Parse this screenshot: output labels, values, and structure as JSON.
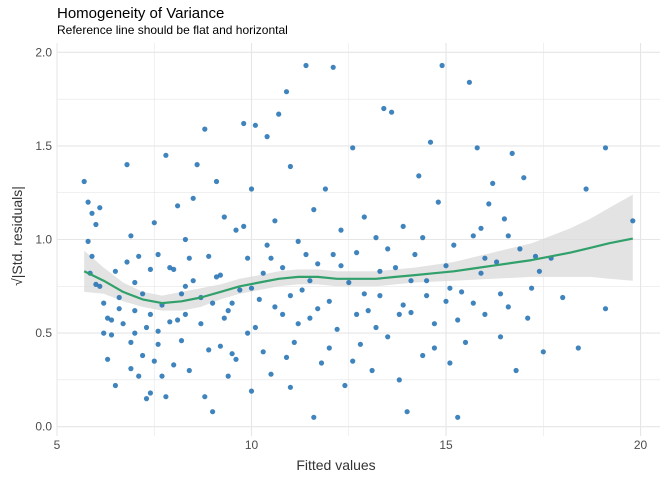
{
  "chart_data": {
    "type": "scatter",
    "title": "Homogeneity of Variance",
    "subtitle": "Reference line should be flat and horizontal",
    "xlabel": "Fitted values",
    "ylabel_radical": "√",
    "ylabel_text": "|Std. residuals|",
    "xlim": [
      5,
      20.5
    ],
    "ylim": [
      -0.05,
      2.05
    ],
    "x_ticks": [
      "5",
      "10",
      "15",
      "20"
    ],
    "y_ticks": [
      "0.0",
      "0.5",
      "1.0",
      "1.5",
      "2.0"
    ],
    "grid": true,
    "colors": {
      "points": "#1f6fb2",
      "smooth": "#31a06b",
      "band": "#d9d9d9",
      "grid": "#e6e6e6"
    },
    "smooth": {
      "x": [
        5.7,
        6.2,
        6.7,
        7.2,
        7.7,
        8.2,
        8.7,
        9.2,
        9.7,
        10.2,
        10.7,
        11.2,
        11.7,
        12.2,
        12.7,
        13.2,
        13.7,
        14.2,
        14.7,
        15.2,
        15.7,
        16.2,
        16.7,
        17.2,
        17.7,
        18.2,
        18.7,
        19.2,
        19.8
      ],
      "y": [
        0.83,
        0.78,
        0.72,
        0.68,
        0.66,
        0.67,
        0.69,
        0.72,
        0.75,
        0.77,
        0.79,
        0.8,
        0.8,
        0.79,
        0.79,
        0.79,
        0.8,
        0.81,
        0.82,
        0.83,
        0.845,
        0.86,
        0.875,
        0.89,
        0.91,
        0.93,
        0.955,
        0.98,
        1.005
      ],
      "lower": [
        0.72,
        0.71,
        0.67,
        0.64,
        0.62,
        0.62,
        0.64,
        0.68,
        0.71,
        0.73,
        0.75,
        0.76,
        0.76,
        0.75,
        0.75,
        0.75,
        0.76,
        0.77,
        0.775,
        0.78,
        0.785,
        0.79,
        0.795,
        0.8,
        0.8,
        0.8,
        0.8,
        0.79,
        0.78
      ],
      "upper": [
        0.94,
        0.85,
        0.77,
        0.72,
        0.7,
        0.72,
        0.74,
        0.76,
        0.79,
        0.81,
        0.83,
        0.84,
        0.84,
        0.83,
        0.83,
        0.83,
        0.84,
        0.85,
        0.865,
        0.88,
        0.905,
        0.93,
        0.955,
        0.98,
        1.02,
        1.06,
        1.11,
        1.17,
        1.24
      ]
    },
    "points": [
      [
        5.7,
        1.31
      ],
      [
        5.8,
        1.2
      ],
      [
        5.9,
        1.14
      ],
      [
        5.8,
        0.99
      ],
      [
        5.9,
        0.91
      ],
      [
        6.0,
        0.76
      ],
      [
        5.85,
        0.82
      ],
      [
        6.0,
        1.08
      ],
      [
        6.1,
        0.75
      ],
      [
        6.2,
        0.66
      ],
      [
        6.2,
        0.5
      ],
      [
        6.3,
        0.58
      ],
      [
        6.3,
        0.36
      ],
      [
        6.4,
        0.57
      ],
      [
        6.4,
        0.49
      ],
      [
        6.5,
        0.22
      ],
      [
        6.6,
        0.69
      ],
      [
        6.7,
        0.55
      ],
      [
        6.8,
        0.88
      ],
      [
        6.8,
        1.4
      ],
      [
        6.9,
        0.31
      ],
      [
        6.9,
        0.45
      ],
      [
        7.0,
        0.62
      ],
      [
        7.0,
        0.77
      ],
      [
        7.1,
        0.27
      ],
      [
        7.1,
        0.91
      ],
      [
        7.2,
        0.38
      ],
      [
        7.3,
        0.15
      ],
      [
        7.3,
        0.53
      ],
      [
        7.4,
        0.18
      ],
      [
        7.4,
        0.84
      ],
      [
        7.5,
        1.09
      ],
      [
        7.5,
        0.35
      ],
      [
        7.6,
        0.51
      ],
      [
        7.6,
        0.92
      ],
      [
        7.7,
        0.27
      ],
      [
        7.7,
        0.65
      ],
      [
        7.8,
        1.45
      ],
      [
        7.8,
        0.16
      ],
      [
        7.9,
        0.56
      ],
      [
        8.0,
        0.33
      ],
      [
        8.0,
        0.84
      ],
      [
        8.1,
        1.18
      ],
      [
        8.2,
        0.71
      ],
      [
        8.2,
        0.46
      ],
      [
        8.3,
        0.6
      ],
      [
        8.3,
        1.0
      ],
      [
        8.4,
        0.3
      ],
      [
        8.5,
        0.78
      ],
      [
        8.5,
        1.22
      ],
      [
        8.6,
        1.4
      ],
      [
        8.7,
        0.55
      ],
      [
        8.8,
        0.16
      ],
      [
        8.8,
        1.59
      ],
      [
        8.9,
        0.91
      ],
      [
        9.0,
        0.08
      ],
      [
        9.0,
        0.66
      ],
      [
        9.1,
        1.31
      ],
      [
        9.2,
        0.43
      ],
      [
        9.2,
        0.81
      ],
      [
        9.3,
        1.12
      ],
      [
        9.4,
        0.27
      ],
      [
        9.4,
        0.62
      ],
      [
        9.5,
        0.39
      ],
      [
        9.6,
        1.05
      ],
      [
        9.7,
        0.73
      ],
      [
        9.8,
        1.62
      ],
      [
        9.9,
        0.5
      ],
      [
        9.9,
        0.9
      ],
      [
        10.0,
        0.19
      ],
      [
        10.0,
        1.27
      ],
      [
        10.1,
        1.61
      ],
      [
        10.2,
        0.68
      ],
      [
        10.3,
        0.4
      ],
      [
        10.4,
        0.97
      ],
      [
        10.4,
        1.55
      ],
      [
        10.5,
        0.28
      ],
      [
        10.6,
        1.1
      ],
      [
        10.7,
        1.67
      ],
      [
        10.8,
        0.6
      ],
      [
        10.8,
        0.85
      ],
      [
        10.9,
        1.79
      ],
      [
        11.0,
        0.21
      ],
      [
        11.0,
        1.39
      ],
      [
        11.1,
        0.45
      ],
      [
        11.2,
        0.99
      ],
      [
        11.3,
        0.73
      ],
      [
        11.4,
        1.93
      ],
      [
        11.5,
        0.58
      ],
      [
        11.6,
        0.05
      ],
      [
        11.6,
        1.16
      ],
      [
        11.7,
        0.87
      ],
      [
        11.8,
        0.34
      ],
      [
        11.9,
        1.27
      ],
      [
        12.0,
        0.67
      ],
      [
        12.1,
        1.92
      ],
      [
        12.2,
        0.52
      ],
      [
        12.3,
        1.05
      ],
      [
        12.4,
        0.22
      ],
      [
        12.5,
        0.77
      ],
      [
        12.6,
        1.49
      ],
      [
        12.7,
        0.93
      ],
      [
        12.8,
        0.44
      ],
      [
        12.9,
        1.12
      ],
      [
        13.0,
        0.62
      ],
      [
        13.1,
        0.3
      ],
      [
        13.2,
        1.01
      ],
      [
        13.3,
        0.7
      ],
      [
        13.4,
        1.7
      ],
      [
        13.5,
        0.48
      ],
      [
        13.6,
        1.68
      ],
      [
        13.7,
        0.85
      ],
      [
        13.8,
        0.25
      ],
      [
        13.9,
        1.07
      ],
      [
        14.0,
        0.08
      ],
      [
        14.1,
        0.61
      ],
      [
        14.2,
        0.92
      ],
      [
        14.3,
        1.34
      ],
      [
        14.4,
        0.38
      ],
      [
        14.5,
        0.78
      ],
      [
        14.6,
        1.52
      ],
      [
        14.7,
        0.55
      ],
      [
        14.8,
        1.2
      ],
      [
        14.9,
        1.93
      ],
      [
        15.0,
        0.67
      ],
      [
        15.1,
        0.34
      ],
      [
        15.2,
        0.97
      ],
      [
        15.3,
        0.05
      ],
      [
        15.4,
        0.72
      ],
      [
        15.5,
        0.45
      ],
      [
        15.6,
        1.84
      ],
      [
        15.7,
        1.02
      ],
      [
        15.8,
        1.49
      ],
      [
        15.9,
        0.82
      ],
      [
        16.0,
        0.6
      ],
      [
        16.1,
        1.19
      ],
      [
        16.2,
        1.3
      ],
      [
        16.3,
        0.88
      ],
      [
        16.4,
        0.71
      ],
      [
        16.5,
        1.11
      ],
      [
        16.6,
        1.02
      ],
      [
        16.7,
        1.46
      ],
      [
        16.8,
        0.3
      ],
      [
        16.9,
        0.95
      ],
      [
        17.0,
        1.33
      ],
      [
        17.1,
        0.58
      ],
      [
        17.2,
        0.74
      ],
      [
        17.3,
        0.91
      ],
      [
        17.5,
        0.4
      ],
      [
        17.7,
        0.9
      ],
      [
        18.0,
        0.69
      ],
      [
        18.4,
        0.42
      ],
      [
        18.6,
        1.27
      ],
      [
        19.1,
        0.63
      ],
      [
        19.1,
        1.49
      ],
      [
        19.8,
        1.1
      ],
      [
        6.5,
        0.83
      ],
      [
        6.9,
        1.02
      ],
      [
        7.2,
        0.71
      ],
      [
        7.6,
        0.44
      ],
      [
        8.1,
        0.57
      ],
      [
        8.4,
        0.9
      ],
      [
        8.9,
        0.41
      ],
      [
        9.3,
        0.58
      ],
      [
        9.6,
        0.36
      ],
      [
        9.8,
        1.07
      ],
      [
        10.1,
        0.53
      ],
      [
        10.3,
        0.82
      ],
      [
        10.6,
        0.64
      ],
      [
        10.9,
        0.37
      ],
      [
        11.2,
        0.55
      ],
      [
        11.4,
        0.92
      ],
      [
        11.7,
        0.63
      ],
      [
        12.0,
        0.42
      ],
      [
        12.3,
        0.86
      ],
      [
        12.6,
        0.35
      ],
      [
        12.9,
        0.71
      ],
      [
        13.2,
        0.53
      ],
      [
        13.5,
        0.95
      ],
      [
        13.8,
        0.6
      ],
      [
        14.1,
        0.78
      ],
      [
        14.4,
        1.01
      ],
      [
        14.7,
        0.42
      ],
      [
        15.0,
        0.86
      ],
      [
        15.3,
        0.57
      ],
      [
        15.7,
        0.66
      ],
      [
        16.0,
        0.9
      ],
      [
        16.4,
        0.48
      ],
      [
        6.1,
        1.17
      ],
      [
        6.6,
        0.63
      ],
      [
        7.0,
        0.5
      ],
      [
        7.4,
        0.6
      ],
      [
        7.9,
        0.85
      ],
      [
        8.3,
        0.75
      ],
      [
        8.7,
        0.69
      ],
      [
        9.1,
        0.8
      ],
      [
        9.5,
        0.66
      ],
      [
        10.0,
        0.74
      ],
      [
        10.5,
        0.9
      ],
      [
        11.0,
        0.7
      ],
      [
        11.5,
        0.78
      ],
      [
        12.1,
        0.92
      ],
      [
        12.7,
        0.6
      ],
      [
        13.3,
        0.83
      ],
      [
        13.9,
        0.65
      ],
      [
        14.5,
        0.7
      ],
      [
        15.1,
        0.74
      ],
      [
        15.9,
        1.06
      ],
      [
        16.6,
        0.64
      ],
      [
        17.4,
        0.83
      ]
    ]
  }
}
